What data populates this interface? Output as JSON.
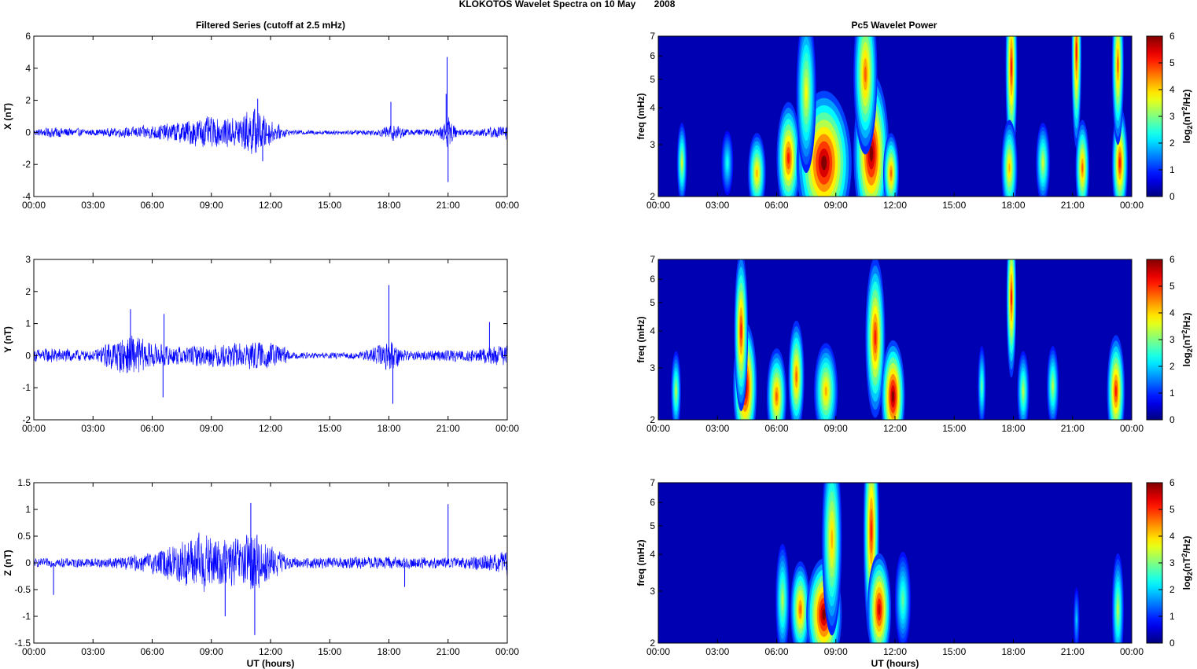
{
  "figure_title": "KLOKOTOS Wavelet Spectra on 10 May       2008",
  "left_column_title": "Filtered Series (cutoff at 2.5 mHz)",
  "right_column_title": "Pc5 Wavelet Power",
  "shared_xlabel": "UT (hours)",
  "colors": {
    "series_line": "#0000ff",
    "axes": "#000000"
  },
  "chart_data": [
    {
      "type": "line",
      "panel": "X",
      "ylabel": "X (nT)",
      "ylim": [
        -4,
        6
      ],
      "yticks": [
        "-4",
        "-2",
        "0",
        "2",
        "4",
        "6"
      ],
      "xlim_hours": [
        0,
        24
      ],
      "xticks": [
        "00:00",
        "03:00",
        "06:00",
        "09:00",
        "12:00",
        "15:00",
        "18:00",
        "21:00",
        "00:00"
      ],
      "envelope": [
        {
          "t": 0,
          "amp": 0.2
        },
        {
          "t": 1,
          "amp": 0.35
        },
        {
          "t": 3,
          "amp": 0.2
        },
        {
          "t": 5,
          "amp": 0.35
        },
        {
          "t": 7,
          "amp": 0.6
        },
        {
          "t": 8.5,
          "amp": 1.0
        },
        {
          "t": 10,
          "amp": 0.9
        },
        {
          "t": 11.2,
          "amp": 1.6
        },
        {
          "t": 12.2,
          "amp": 0.6
        },
        {
          "t": 13,
          "amp": 0.15
        },
        {
          "t": 16,
          "amp": 0.15
        },
        {
          "t": 17.5,
          "amp": 0.2
        },
        {
          "t": 18.2,
          "amp": 0.6
        },
        {
          "t": 19,
          "amp": 0.2
        },
        {
          "t": 20.5,
          "amp": 0.25
        },
        {
          "t": 21,
          "amp": 1.0
        },
        {
          "t": 21.5,
          "amp": 0.2
        },
        {
          "t": 23,
          "amp": 0.3
        },
        {
          "t": 24,
          "amp": 0.5
        }
      ],
      "spikes": [
        {
          "t": 11.35,
          "v": 2.1
        },
        {
          "t": 11.6,
          "v": -1.8
        },
        {
          "t": 18.1,
          "v": 1.9
        },
        {
          "t": 20.95,
          "v": 4.7
        },
        {
          "t": 21.0,
          "v": -3.1
        },
        {
          "t": 20.9,
          "v": 2.4
        }
      ]
    },
    {
      "type": "line",
      "panel": "Y",
      "ylabel": "Y (nT)",
      "ylim": [
        -2,
        3
      ],
      "yticks": [
        "-2",
        "-1",
        "0",
        "1",
        "2",
        "3"
      ],
      "xlim_hours": [
        0,
        24
      ],
      "xticks": [
        "00:00",
        "03:00",
        "06:00",
        "09:00",
        "12:00",
        "15:00",
        "18:00",
        "21:00",
        "00:00"
      ],
      "envelope": [
        {
          "t": 0,
          "amp": 0.2
        },
        {
          "t": 1,
          "amp": 0.25
        },
        {
          "t": 3,
          "amp": 0.15
        },
        {
          "t": 4,
          "amp": 0.5
        },
        {
          "t": 5,
          "amp": 0.7
        },
        {
          "t": 6,
          "amp": 0.4
        },
        {
          "t": 7,
          "amp": 0.3
        },
        {
          "t": 9,
          "amp": 0.35
        },
        {
          "t": 11,
          "amp": 0.45
        },
        {
          "t": 12.5,
          "amp": 0.4
        },
        {
          "t": 13,
          "amp": 0.1
        },
        {
          "t": 16.5,
          "amp": 0.1
        },
        {
          "t": 18.1,
          "amp": 0.5
        },
        {
          "t": 19,
          "amp": 0.15
        },
        {
          "t": 22,
          "amp": 0.2
        },
        {
          "t": 24,
          "amp": 0.35
        }
      ],
      "spikes": [
        {
          "t": 4.9,
          "v": 1.45
        },
        {
          "t": 6.6,
          "v": 1.3
        },
        {
          "t": 6.55,
          "v": -1.3
        },
        {
          "t": 18.0,
          "v": 2.2
        },
        {
          "t": 18.2,
          "v": -1.5
        },
        {
          "t": 23.1,
          "v": 1.05
        }
      ]
    },
    {
      "type": "line",
      "panel": "Z",
      "ylabel": "Z (nT)",
      "ylim": [
        -1.5,
        1.5
      ],
      "yticks": [
        "-1.5",
        "-1",
        "-0.5",
        "0",
        "0.5",
        "1",
        "1.5"
      ],
      "xlim_hours": [
        0,
        24
      ],
      "xticks": [
        "00:00",
        "03:00",
        "06:00",
        "09:00",
        "12:00",
        "15:00",
        "18:00",
        "21:00",
        "00:00"
      ],
      "xlabel": "UT (hours)",
      "envelope": [
        {
          "t": 0,
          "amp": 0.08
        },
        {
          "t": 4,
          "amp": 0.1
        },
        {
          "t": 6,
          "amp": 0.2
        },
        {
          "t": 7.5,
          "amp": 0.45
        },
        {
          "t": 8.5,
          "amp": 0.6
        },
        {
          "t": 9.5,
          "amp": 0.45
        },
        {
          "t": 10.5,
          "amp": 0.5
        },
        {
          "t": 11.3,
          "amp": 0.6
        },
        {
          "t": 12,
          "amp": 0.35
        },
        {
          "t": 13,
          "amp": 0.1
        },
        {
          "t": 18,
          "amp": 0.12
        },
        {
          "t": 21,
          "amp": 0.1
        },
        {
          "t": 23,
          "amp": 0.15
        },
        {
          "t": 24,
          "amp": 0.25
        }
      ],
      "spikes": [
        {
          "t": 1.0,
          "v": -0.6
        },
        {
          "t": 11.0,
          "v": 1.12
        },
        {
          "t": 11.2,
          "v": -1.35
        },
        {
          "t": 9.7,
          "v": -1.0
        },
        {
          "t": 21.0,
          "v": 1.1
        },
        {
          "t": 18.8,
          "v": -0.45
        }
      ]
    },
    {
      "type": "heatmap",
      "panel": "X",
      "ylabel": "freq (mHz)",
      "ylim_mhz": [
        2,
        7
      ],
      "yscale": "log",
      "yticks": [
        "2",
        "3",
        "4",
        "5",
        "6",
        "7"
      ],
      "xticks": [
        "00:00",
        "03:00",
        "06:00",
        "09:00",
        "12:00",
        "15:00",
        "18:00",
        "21:00",
        "00:00"
      ],
      "colorbar_label": "log2(nT2/Hz)",
      "colorbar_ticks": [
        "0",
        "1",
        "2",
        "3",
        "4",
        "5",
        "6"
      ],
      "clim": [
        0,
        6
      ],
      "features": [
        {
          "t": 1.2,
          "f": 2.6,
          "power": 3.2,
          "width_h": 0.25,
          "height": 0.25
        },
        {
          "t": 3.5,
          "f": 2.6,
          "power": 2.0,
          "width_h": 0.3,
          "height": 0.2
        },
        {
          "t": 5.0,
          "f": 2.4,
          "power": 4.0,
          "width_h": 0.45,
          "height": 0.25
        },
        {
          "t": 6.6,
          "f": 2.7,
          "power": 5.0,
          "width_h": 0.6,
          "height": 0.35
        },
        {
          "t": 8.4,
          "f": 2.6,
          "power": 6.0,
          "width_h": 1.4,
          "height": 0.45
        },
        {
          "t": 10.8,
          "f": 2.8,
          "power": 6.0,
          "width_h": 0.9,
          "height": 0.5
        },
        {
          "t": 11.8,
          "f": 2.4,
          "power": 4.5,
          "width_h": 0.4,
          "height": 0.25
        },
        {
          "t": 7.5,
          "f": 4.5,
          "power": 3.5,
          "width_h": 0.5,
          "height": 0.5
        },
        {
          "t": 10.5,
          "f": 5.2,
          "power": 4.5,
          "width_h": 0.6,
          "height": 0.5
        },
        {
          "t": 17.9,
          "f": 5.5,
          "power": 5.0,
          "width_h": 0.3,
          "height": 0.6
        },
        {
          "t": 17.8,
          "f": 2.5,
          "power": 4.0,
          "width_h": 0.4,
          "height": 0.3
        },
        {
          "t": 19.5,
          "f": 2.6,
          "power": 3.2,
          "width_h": 0.35,
          "height": 0.25
        },
        {
          "t": 21.2,
          "f": 6.2,
          "power": 5.0,
          "width_h": 0.25,
          "height": 0.6
        },
        {
          "t": 21.5,
          "f": 2.5,
          "power": 4.5,
          "width_h": 0.35,
          "height": 0.3
        },
        {
          "t": 23.4,
          "f": 2.6,
          "power": 5.0,
          "width_h": 0.4,
          "height": 0.35
        },
        {
          "t": 23.3,
          "f": 5.6,
          "power": 4.5,
          "width_h": 0.3,
          "height": 0.5
        }
      ]
    },
    {
      "type": "heatmap",
      "panel": "Y",
      "ylabel": "freq (mHz)",
      "ylim_mhz": [
        2,
        7
      ],
      "yscale": "log",
      "yticks": [
        "2",
        "3",
        "4",
        "5",
        "6",
        "7"
      ],
      "xticks": [
        "00:00",
        "03:00",
        "06:00",
        "09:00",
        "12:00",
        "15:00",
        "18:00",
        "21:00",
        "00:00"
      ],
      "colorbar_label": "log2(nT2/Hz)",
      "colorbar_ticks": [
        "0",
        "1",
        "2",
        "3",
        "4",
        "5",
        "6"
      ],
      "clim": [
        0,
        6
      ],
      "features": [
        {
          "t": 0.9,
          "f": 2.5,
          "power": 3.0,
          "width_h": 0.25,
          "height": 0.25
        },
        {
          "t": 4.4,
          "f": 2.6,
          "power": 6.0,
          "width_h": 0.6,
          "height": 0.4
        },
        {
          "t": 4.2,
          "f": 4.0,
          "power": 5.0,
          "width_h": 0.35,
          "height": 0.5
        },
        {
          "t": 6.0,
          "f": 2.4,
          "power": 4.5,
          "width_h": 0.5,
          "height": 0.3
        },
        {
          "t": 7.0,
          "f": 2.8,
          "power": 4.5,
          "width_h": 0.4,
          "height": 0.35
        },
        {
          "t": 8.5,
          "f": 2.5,
          "power": 4.0,
          "width_h": 0.6,
          "height": 0.3
        },
        {
          "t": 11.0,
          "f": 3.8,
          "power": 5.0,
          "width_h": 0.5,
          "height": 0.5
        },
        {
          "t": 11.9,
          "f": 2.4,
          "power": 6.0,
          "width_h": 0.6,
          "height": 0.35
        },
        {
          "t": 16.4,
          "f": 2.6,
          "power": 2.5,
          "width_h": 0.2,
          "height": 0.25
        },
        {
          "t": 17.9,
          "f": 5.2,
          "power": 5.0,
          "width_h": 0.25,
          "height": 0.5
        },
        {
          "t": 18.5,
          "f": 2.5,
          "power": 3.0,
          "width_h": 0.3,
          "height": 0.25
        },
        {
          "t": 20.0,
          "f": 2.6,
          "power": 3.0,
          "width_h": 0.3,
          "height": 0.25
        },
        {
          "t": 23.2,
          "f": 2.5,
          "power": 5.0,
          "width_h": 0.45,
          "height": 0.35
        }
      ]
    },
    {
      "type": "heatmap",
      "panel": "Z",
      "ylabel": "freq (mHz)",
      "ylim_mhz": [
        2,
        7
      ],
      "yscale": "log",
      "yticks": [
        "2",
        "3",
        "4",
        "5",
        "6",
        "7"
      ],
      "xticks": [
        "00:00",
        "03:00",
        "06:00",
        "09:00",
        "12:00",
        "15:00",
        "18:00",
        "21:00",
        "00:00"
      ],
      "xlabel": "UT (hours)",
      "colorbar_label": "log2(nT2/Hz)",
      "colorbar_ticks": [
        "0",
        "1",
        "2",
        "3",
        "4",
        "5",
        "6"
      ],
      "clim": [
        0,
        6
      ],
      "features": [
        {
          "t": 6.3,
          "f": 2.8,
          "power": 3.0,
          "width_h": 0.35,
          "height": 0.35
        },
        {
          "t": 7.2,
          "f": 2.6,
          "power": 4.5,
          "width_h": 0.5,
          "height": 0.3
        },
        {
          "t": 8.4,
          "f": 2.5,
          "power": 6.0,
          "width_h": 0.9,
          "height": 0.35
        },
        {
          "t": 8.8,
          "f": 4.5,
          "power": 4.0,
          "width_h": 0.5,
          "height": 0.6
        },
        {
          "t": 10.8,
          "f": 4.8,
          "power": 5.0,
          "width_h": 0.4,
          "height": 0.7
        },
        {
          "t": 11.2,
          "f": 2.6,
          "power": 5.5,
          "width_h": 0.6,
          "height": 0.35
        },
        {
          "t": 12.4,
          "f": 2.8,
          "power": 2.5,
          "width_h": 0.4,
          "height": 0.3
        },
        {
          "t": 21.2,
          "f": 2.4,
          "power": 1.5,
          "width_h": 0.15,
          "height": 0.2
        },
        {
          "t": 23.3,
          "f": 2.6,
          "power": 3.0,
          "width_h": 0.3,
          "height": 0.35
        }
      ]
    }
  ]
}
